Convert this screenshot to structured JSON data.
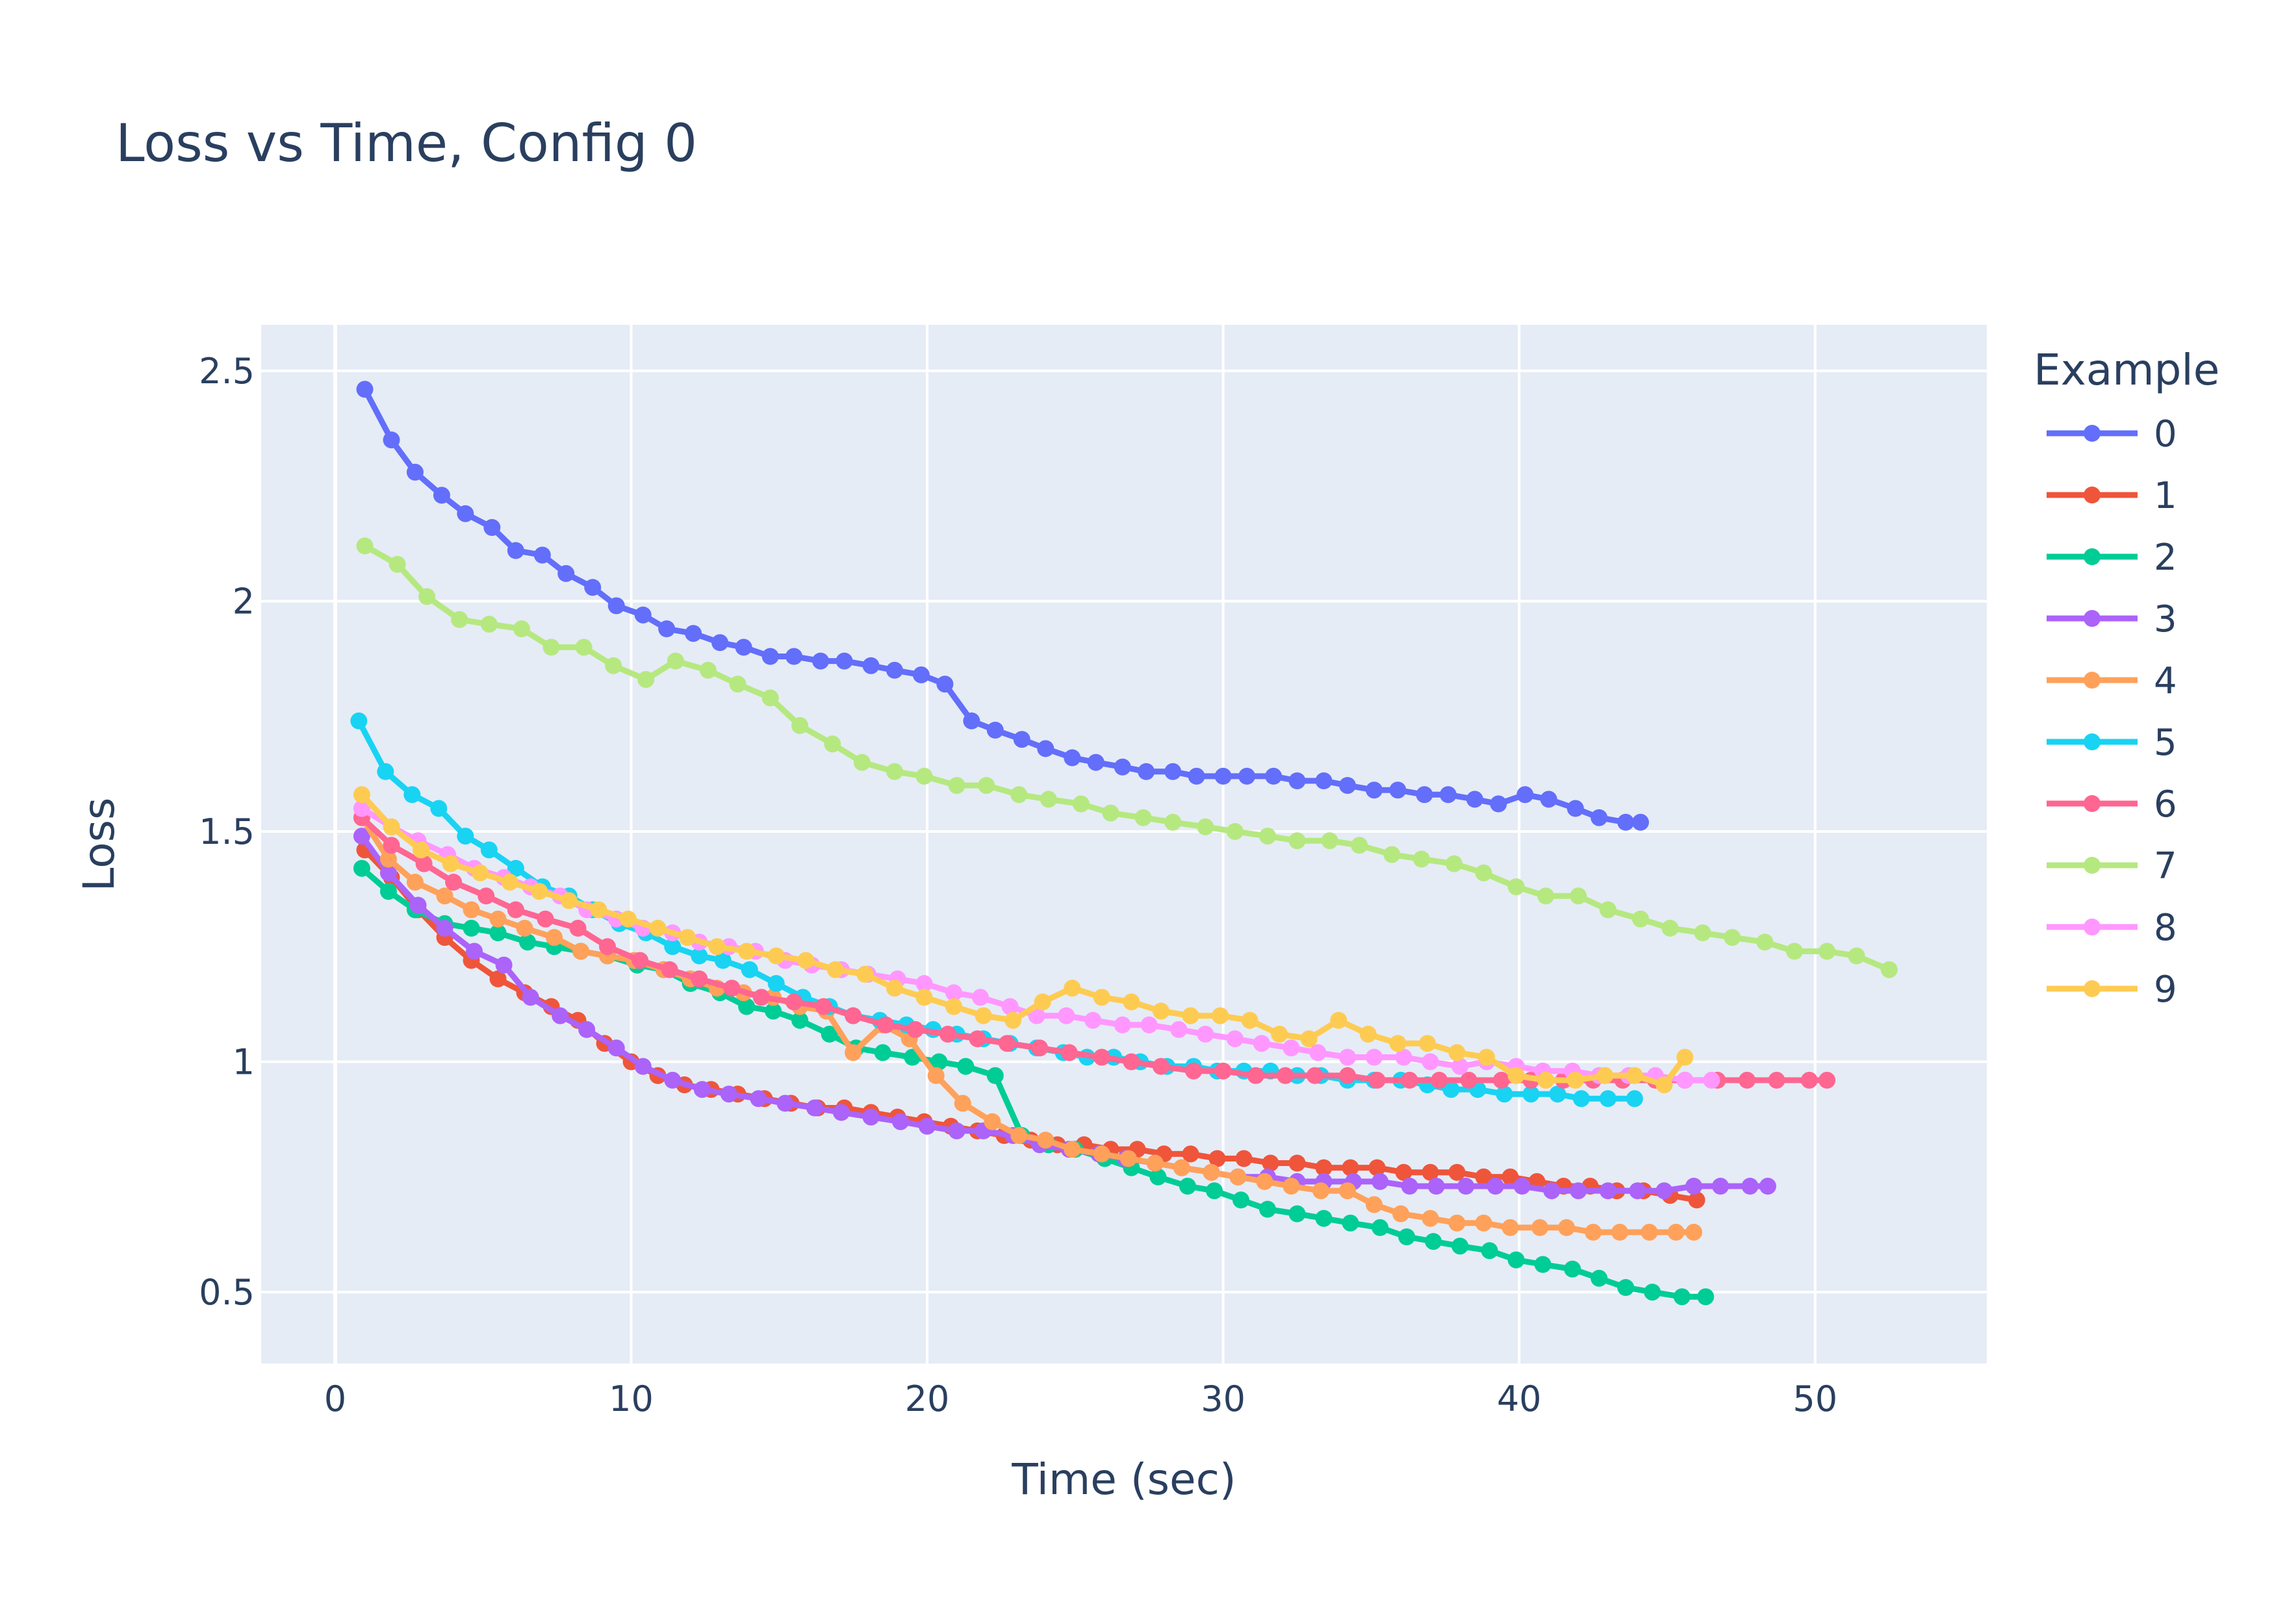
{
  "chart_data": {
    "type": "line",
    "title": "Loss vs Time, Config 0",
    "xlabel": "Time (sec)",
    "ylabel": "Loss",
    "xlim": [
      -2.5,
      55.8
    ],
    "ylim": [
      0.345,
      2.6
    ],
    "xticks": [
      0,
      10,
      20,
      30,
      40,
      50
    ],
    "xtick_labels": [
      "0",
      "10",
      "20",
      "30",
      "40",
      "50"
    ],
    "yticks": [
      0.5,
      1,
      1.5,
      2,
      2.5
    ],
    "ytick_labels": [
      "0.5",
      "1",
      "1.5",
      "2",
      "2.5"
    ],
    "grid": true,
    "legend_title": "Example",
    "legend_position": "right",
    "series": [
      {
        "name": "0",
        "color": "#636efa",
        "x": [
          1,
          1.9,
          2.7,
          3.6,
          4.4,
          5.3,
          6.1,
          7,
          7.8,
          8.7,
          9.5,
          10.4,
          11.2,
          12.1,
          13,
          13.8,
          14.7,
          15.5,
          16.4,
          17.2,
          18.1,
          18.9,
          19.8,
          20.6,
          21.5,
          22.3,
          23.2,
          24,
          24.9,
          25.7,
          26.6,
          27.4,
          28.3,
          29.1,
          30,
          30.8,
          31.7,
          32.5,
          33.4,
          34.2,
          35.1,
          35.9,
          36.8,
          37.6,
          38.5,
          39.3,
          40.2,
          41,
          41.9,
          42.7,
          43.6,
          44.1
        ],
        "y": [
          2.46,
          2.35,
          2.28,
          2.23,
          2.19,
          2.16,
          2.11,
          2.1,
          2.06,
          2.03,
          1.99,
          1.97,
          1.94,
          1.93,
          1.91,
          1.9,
          1.88,
          1.88,
          1.87,
          1.87,
          1.86,
          1.85,
          1.84,
          1.82,
          1.74,
          1.72,
          1.7,
          1.68,
          1.66,
          1.65,
          1.64,
          1.63,
          1.63,
          1.62,
          1.62,
          1.62,
          1.62,
          1.61,
          1.61,
          1.6,
          1.59,
          1.59,
          1.58,
          1.58,
          1.57,
          1.56,
          1.58,
          1.57,
          1.55,
          1.53,
          1.52,
          1.52
        ]
      },
      {
        "name": "1",
        "color": "#ef553b",
        "x": [
          1,
          1.9,
          2.8,
          3.7,
          4.6,
          5.5,
          6.4,
          7.3,
          8.2,
          9.1,
          10,
          10.9,
          11.8,
          12.7,
          13.6,
          14.5,
          15.4,
          16.3,
          17.2,
          18.1,
          19,
          19.9,
          20.8,
          21.7,
          22.6,
          23.5,
          24.4,
          25.3,
          26.2,
          27.1,
          28,
          28.9,
          29.8,
          30.7,
          31.6,
          32.5,
          33.4,
          34.3,
          35.2,
          36.1,
          37,
          37.9,
          38.8,
          39.7,
          40.6,
          41.5,
          42.4,
          43.3,
          44.2,
          45.1,
          46
        ],
        "y": [
          1.46,
          1.4,
          1.33,
          1.27,
          1.22,
          1.18,
          1.15,
          1.12,
          1.09,
          1.04,
          1,
          0.97,
          0.95,
          0.94,
          0.93,
          0.92,
          0.91,
          0.9,
          0.9,
          0.89,
          0.88,
          0.87,
          0.86,
          0.85,
          0.84,
          0.83,
          0.82,
          0.82,
          0.81,
          0.81,
          0.8,
          0.8,
          0.79,
          0.79,
          0.78,
          0.78,
          0.77,
          0.77,
          0.77,
          0.76,
          0.76,
          0.76,
          0.75,
          0.75,
          0.74,
          0.73,
          0.73,
          0.72,
          0.72,
          0.71,
          0.7
        ]
      },
      {
        "name": "2",
        "color": "#00cc96",
        "x": [
          0.9,
          1.8,
          2.7,
          3.7,
          4.6,
          5.5,
          6.5,
          7.4,
          8.3,
          9.2,
          10.2,
          11.1,
          12,
          13,
          13.9,
          14.8,
          15.7,
          16.7,
          17.6,
          18.5,
          19.5,
          20.4,
          21.3,
          22.3,
          23.2,
          24.1,
          25,
          26,
          26.9,
          27.8,
          28.8,
          29.7,
          30.6,
          31.5,
          32.5,
          33.4,
          34.3,
          35.3,
          36.2,
          37.1,
          38,
          39,
          39.9,
          40.8,
          41.8,
          42.7,
          43.6,
          44.5,
          45.5,
          46.3
        ],
        "y": [
          1.42,
          1.37,
          1.33,
          1.3,
          1.29,
          1.28,
          1.26,
          1.25,
          1.24,
          1.23,
          1.21,
          1.2,
          1.17,
          1.15,
          1.12,
          1.11,
          1.09,
          1.06,
          1.03,
          1.02,
          1.01,
          1,
          0.99,
          0.97,
          0.84,
          0.82,
          0.81,
          0.79,
          0.77,
          0.75,
          0.73,
          0.72,
          0.7,
          0.68,
          0.67,
          0.66,
          0.65,
          0.64,
          0.62,
          0.61,
          0.6,
          0.59,
          0.57,
          0.56,
          0.55,
          0.53,
          0.51,
          0.5,
          0.49,
          0.49
        ]
      },
      {
        "name": "3",
        "color": "#ab63fa",
        "x": [
          0.9,
          1.8,
          2.8,
          3.7,
          4.7,
          5.7,
          6.6,
          7.6,
          8.5,
          9.5,
          10.4,
          11.4,
          12.4,
          13.3,
          14.3,
          15.2,
          16.2,
          17.1,
          18.1,
          19.1,
          20,
          21,
          21.9,
          22.9,
          23.8,
          24.8,
          25.8,
          26.7,
          27.7,
          28.6,
          29.6,
          30.5,
          31.5,
          32.5,
          33.4,
          34.4,
          35.3,
          36.3,
          37.2,
          38.2,
          39.2,
          40.1,
          41.1,
          42,
          43,
          44,
          44.9,
          45.9,
          46.8,
          47.8,
          48.4
        ],
        "y": [
          1.49,
          1.41,
          1.34,
          1.29,
          1.24,
          1.21,
          1.14,
          1.1,
          1.07,
          1.03,
          0.99,
          0.96,
          0.94,
          0.93,
          0.92,
          0.91,
          0.9,
          0.89,
          0.88,
          0.87,
          0.86,
          0.85,
          0.85,
          0.84,
          0.82,
          0.81,
          0.8,
          0.79,
          0.78,
          0.77,
          0.76,
          0.75,
          0.75,
          0.74,
          0.74,
          0.74,
          0.74,
          0.73,
          0.73,
          0.73,
          0.73,
          0.73,
          0.72,
          0.72,
          0.72,
          0.72,
          0.72,
          0.73,
          0.73,
          0.73,
          0.73
        ]
      },
      {
        "name": "4",
        "color": "#ffa15a",
        "x": [
          0.9,
          1.8,
          2.7,
          3.7,
          4.6,
          5.5,
          6.4,
          7.4,
          8.3,
          9.2,
          10.1,
          11.1,
          12,
          12.9,
          13.8,
          14.8,
          15.7,
          16.6,
          17.5,
          18.5,
          19.4,
          20.3,
          21.2,
          22.2,
          23.1,
          24,
          24.9,
          25.9,
          26.8,
          27.7,
          28.6,
          29.6,
          30.5,
          31.4,
          32.3,
          33.3,
          34.2,
          35.1,
          36,
          37,
          37.9,
          38.8,
          39.7,
          40.7,
          41.6,
          42.5,
          43.4,
          44.4,
          45.3,
          45.9
        ],
        "y": [
          1.53,
          1.44,
          1.39,
          1.36,
          1.33,
          1.31,
          1.29,
          1.27,
          1.24,
          1.23,
          1.22,
          1.2,
          1.18,
          1.16,
          1.15,
          1.14,
          1.12,
          1.11,
          1.02,
          1.08,
          1.05,
          0.97,
          0.91,
          0.87,
          0.84,
          0.83,
          0.81,
          0.8,
          0.79,
          0.78,
          0.77,
          0.76,
          0.75,
          0.74,
          0.73,
          0.72,
          0.72,
          0.69,
          0.67,
          0.66,
          0.65,
          0.65,
          0.64,
          0.64,
          0.64,
          0.63,
          0.63,
          0.63,
          0.63,
          0.63
        ]
      },
      {
        "name": "5",
        "color": "#19d3f3",
        "x": [
          0.8,
          1.7,
          2.6,
          3.5,
          4.4,
          5.2,
          6.1,
          7,
          7.9,
          8.7,
          9.6,
          10.5,
          11.4,
          12.3,
          13.1,
          14,
          14.9,
          15.8,
          16.7,
          17.5,
          18.4,
          19.3,
          20.2,
          21,
          21.9,
          22.8,
          23.7,
          24.6,
          25.4,
          26.3,
          27.2,
          28.1,
          29,
          29.8,
          30.7,
          31.6,
          32.5,
          33.3,
          34.2,
          35.1,
          36,
          36.9,
          37.7,
          38.6,
          39.5,
          40.4,
          41.3,
          42.1,
          43,
          43.9
        ],
        "y": [
          1.74,
          1.63,
          1.58,
          1.55,
          1.49,
          1.46,
          1.42,
          1.38,
          1.36,
          1.33,
          1.3,
          1.28,
          1.25,
          1.23,
          1.22,
          1.2,
          1.17,
          1.14,
          1.12,
          1.1,
          1.09,
          1.08,
          1.07,
          1.06,
          1.05,
          1.04,
          1.03,
          1.02,
          1.01,
          1.01,
          1,
          0.99,
          0.99,
          0.98,
          0.98,
          0.98,
          0.97,
          0.97,
          0.96,
          0.96,
          0.96,
          0.95,
          0.94,
          0.94,
          0.93,
          0.93,
          0.93,
          0.92,
          0.92,
          0.92
        ]
      },
      {
        "name": "6",
        "color": "#ff6692",
        "x": [
          0.9,
          1.9,
          3,
          4,
          5.1,
          6.1,
          7.1,
          8.2,
          9.2,
          10.3,
          11.3,
          12.3,
          13.4,
          14.4,
          15.5,
          16.5,
          17.5,
          18.6,
          19.6,
          20.7,
          21.7,
          22.7,
          23.8,
          24.8,
          25.9,
          26.9,
          27.9,
          29,
          30,
          31.1,
          32.1,
          33.1,
          34.2,
          35.2,
          36.3,
          37.3,
          38.3,
          39.4,
          40.4,
          41.5,
          42.5,
          43.5,
          44.6,
          45.6,
          46.7,
          47.7,
          48.7,
          49.8,
          50.4
        ],
        "y": [
          1.53,
          1.47,
          1.43,
          1.39,
          1.36,
          1.33,
          1.31,
          1.29,
          1.25,
          1.22,
          1.2,
          1.18,
          1.16,
          1.14,
          1.13,
          1.12,
          1.1,
          1.08,
          1.07,
          1.06,
          1.05,
          1.04,
          1.03,
          1.02,
          1.01,
          1,
          0.99,
          0.98,
          0.98,
          0.97,
          0.97,
          0.97,
          0.97,
          0.96,
          0.96,
          0.96,
          0.96,
          0.96,
          0.96,
          0.96,
          0.96,
          0.96,
          0.96,
          0.96,
          0.96,
          0.96,
          0.96,
          0.96,
          0.96
        ]
      },
      {
        "name": "7",
        "color": "#b6e880",
        "x": [
          1,
          2.1,
          3.1,
          4.2,
          5.2,
          6.3,
          7.3,
          8.4,
          9.4,
          10.5,
          11.5,
          12.6,
          13.6,
          14.7,
          15.7,
          16.8,
          17.8,
          18.9,
          19.9,
          21,
          22,
          23.1,
          24.1,
          25.2,
          26.2,
          27.3,
          28.3,
          29.4,
          30.4,
          31.5,
          32.5,
          33.6,
          34.6,
          35.7,
          36.7,
          37.8,
          38.8,
          39.9,
          40.9,
          42,
          43,
          44.1,
          45.1,
          46.2,
          47.2,
          48.3,
          49.3,
          50.4,
          51.4,
          52.5
        ],
        "y": [
          2.12,
          2.08,
          2.01,
          1.96,
          1.95,
          1.94,
          1.9,
          1.9,
          1.86,
          1.83,
          1.87,
          1.85,
          1.82,
          1.79,
          1.73,
          1.69,
          1.65,
          1.63,
          1.62,
          1.6,
          1.6,
          1.58,
          1.57,
          1.56,
          1.54,
          1.53,
          1.52,
          1.51,
          1.5,
          1.49,
          1.48,
          1.48,
          1.47,
          1.45,
          1.44,
          1.43,
          1.41,
          1.38,
          1.36,
          1.36,
          1.33,
          1.31,
          1.29,
          1.28,
          1.27,
          1.26,
          1.24,
          1.24,
          1.23,
          1.2
        ]
      },
      {
        "name": "8",
        "color": "#ff97ff",
        "x": [
          0.9,
          1.9,
          2.8,
          3.8,
          4.7,
          5.7,
          6.6,
          7.6,
          8.5,
          9.5,
          10.4,
          11.4,
          12.3,
          13.3,
          14.2,
          15.2,
          16.1,
          17.1,
          18,
          19,
          19.9,
          20.9,
          21.8,
          22.8,
          23.7,
          24.7,
          25.6,
          26.6,
          27.5,
          28.5,
          29.4,
          30.4,
          31.3,
          32.3,
          33.2,
          34.2,
          35.1,
          36.1,
          37,
          38,
          38.9,
          39.9,
          40.8,
          41.8,
          42.7,
          43.7,
          44.6,
          45.6,
          46.5
        ],
        "y": [
          1.55,
          1.51,
          1.48,
          1.45,
          1.42,
          1.4,
          1.38,
          1.36,
          1.33,
          1.31,
          1.29,
          1.28,
          1.26,
          1.25,
          1.24,
          1.22,
          1.21,
          1.2,
          1.19,
          1.18,
          1.17,
          1.15,
          1.14,
          1.12,
          1.1,
          1.1,
          1.09,
          1.08,
          1.08,
          1.07,
          1.06,
          1.05,
          1.04,
          1.03,
          1.02,
          1.01,
          1.01,
          1.01,
          1,
          0.99,
          1,
          0.99,
          0.98,
          0.98,
          0.97,
          0.97,
          0.97,
          0.96,
          0.96
        ]
      },
      {
        "name": "9",
        "color": "#fecb52",
        "x": [
          0.9,
          1.9,
          2.9,
          3.9,
          4.9,
          5.9,
          6.9,
          7.9,
          8.9,
          9.9,
          10.9,
          11.9,
          12.9,
          13.9,
          14.9,
          15.9,
          16.9,
          17.9,
          18.9,
          19.9,
          20.9,
          21.9,
          22.9,
          23.9,
          24.9,
          25.9,
          26.9,
          27.9,
          28.9,
          29.9,
          30.9,
          31.9,
          32.9,
          33.9,
          34.9,
          35.9,
          36.9,
          37.9,
          38.9,
          39.9,
          40.9,
          41.9,
          42.9,
          43.9,
          44.9,
          45.6
        ],
        "y": [
          1.58,
          1.51,
          1.46,
          1.43,
          1.41,
          1.39,
          1.37,
          1.35,
          1.33,
          1.31,
          1.29,
          1.27,
          1.25,
          1.24,
          1.23,
          1.22,
          1.2,
          1.19,
          1.16,
          1.14,
          1.12,
          1.1,
          1.09,
          1.13,
          1.16,
          1.14,
          1.13,
          1.11,
          1.1,
          1.1,
          1.09,
          1.06,
          1.05,
          1.09,
          1.06,
          1.04,
          1.04,
          1.02,
          1.01,
          0.97,
          0.96,
          0.96,
          0.97,
          0.97,
          0.95,
          1.01
        ]
      }
    ]
  }
}
